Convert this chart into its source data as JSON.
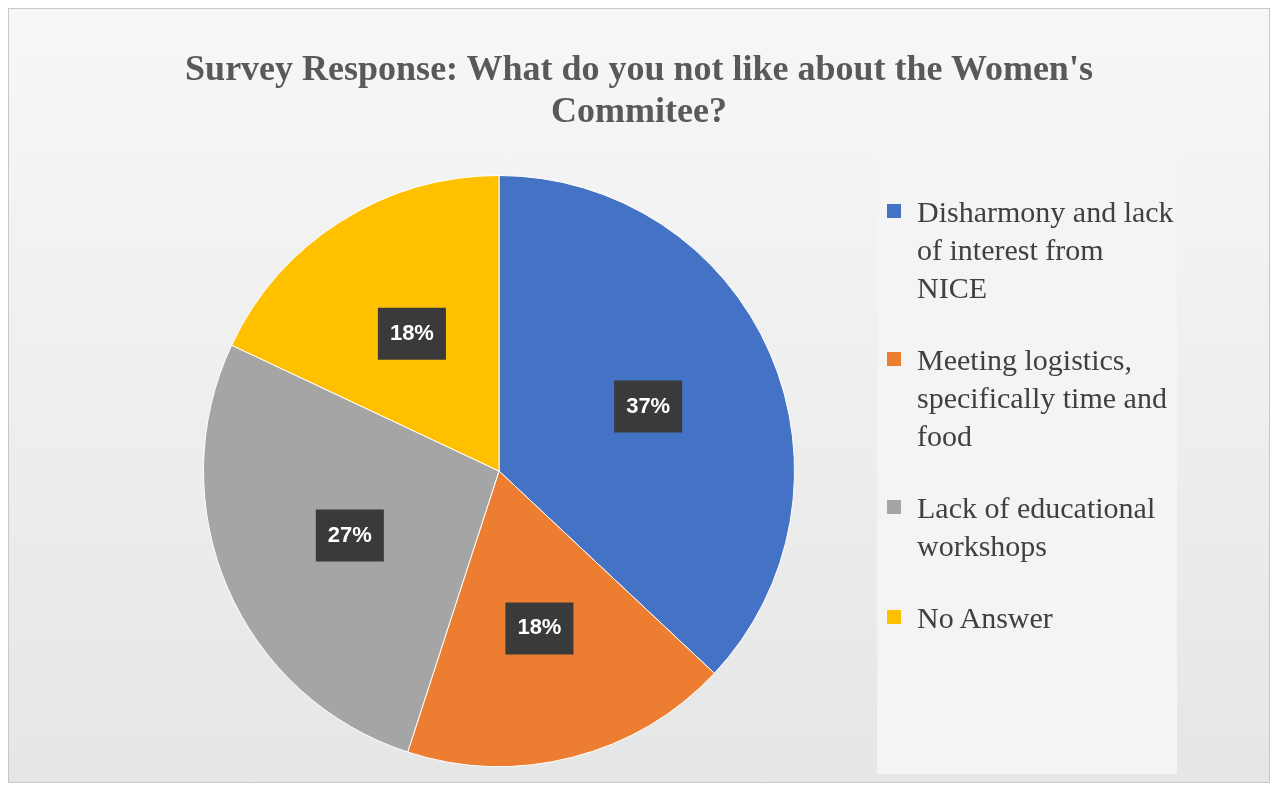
{
  "chart_data": {
    "type": "pie",
    "title": "Survey Response: What do you not like about the Women's Commitee?",
    "categories": [
      "Disharmony and lack of interest from NICE",
      "Meeting logistics, specifically time and food",
      "Lack of educational workshops",
      "No Answer"
    ],
    "values": [
      37,
      18,
      27,
      18
    ],
    "colors": [
      "#4472c4",
      "#ed7d31",
      "#a5a5a5",
      "#ffc000"
    ],
    "value_labels": [
      "37%",
      "18%",
      "27%",
      "18%"
    ],
    "legend": "right"
  }
}
